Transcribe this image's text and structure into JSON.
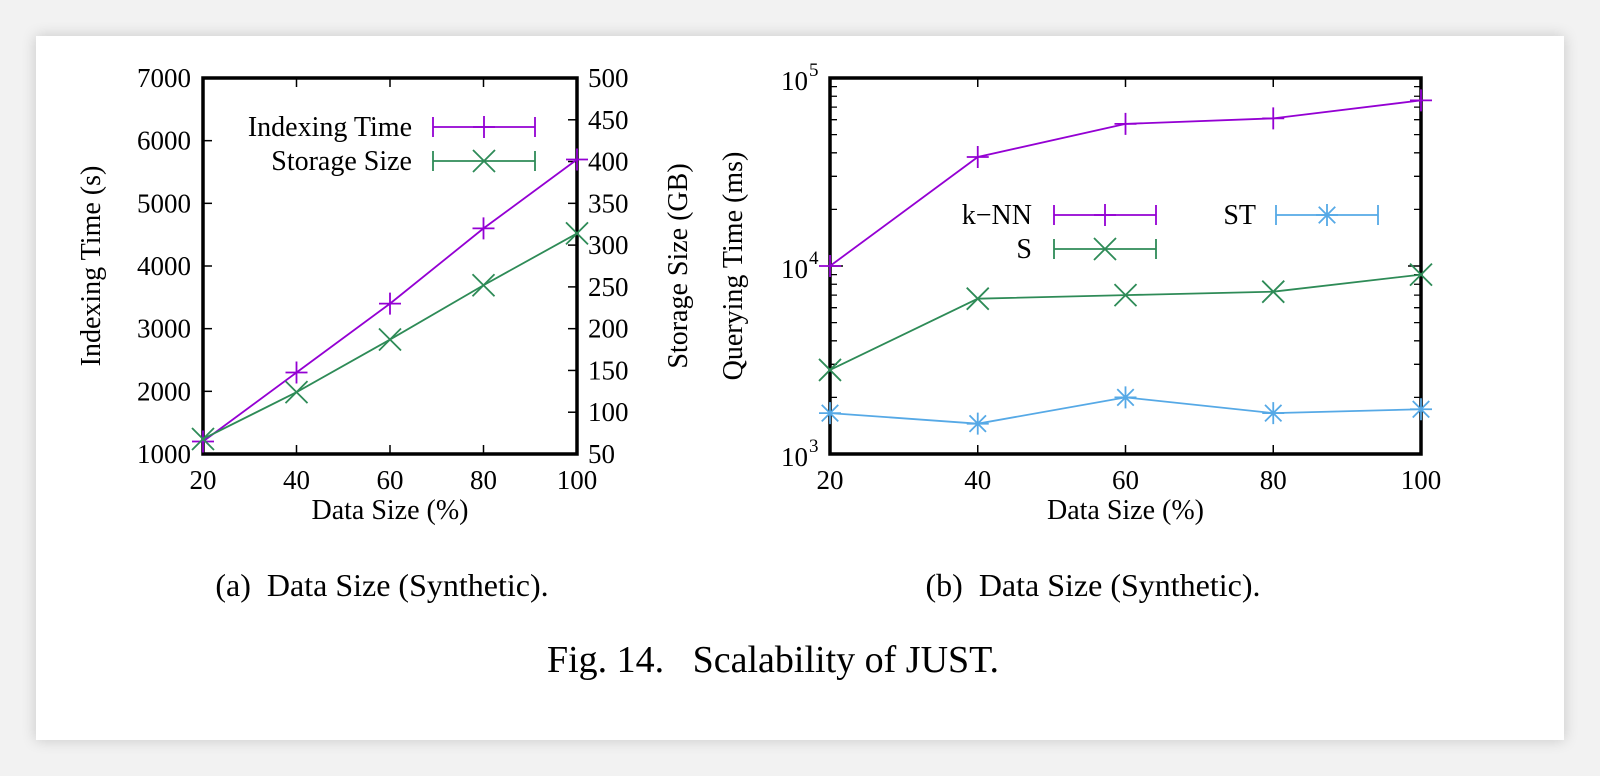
{
  "figure_caption": "Fig. 14.   Scalability of JUST.",
  "chart_data": [
    {
      "type": "line",
      "caption": "(a)  Data Size (Synthetic).",
      "xlabel": "Data Size (%)",
      "ylabel": "Indexing Time (s)",
      "y2label": "Storage Size (GB)",
      "x": [
        20,
        40,
        60,
        80,
        100
      ],
      "xticks": [
        "20",
        "40",
        "60",
        "80",
        "100"
      ],
      "ylim": [
        1000,
        7000
      ],
      "yticks": [
        "1000",
        "2000",
        "3000",
        "4000",
        "5000",
        "6000",
        "7000"
      ],
      "y2lim": [
        50,
        500
      ],
      "y2ticks": [
        "50",
        "100",
        "150",
        "200",
        "250",
        "300",
        "350",
        "400",
        "450",
        "500"
      ],
      "grid": false,
      "legend_position": "top-left",
      "series": [
        {
          "name": "Indexing Time",
          "axis": "left",
          "color": "#9400d3",
          "marker": "plus",
          "values": [
            1200,
            2300,
            3400,
            4600,
            5700
          ]
        },
        {
          "name": "Storage Size",
          "axis": "right",
          "color": "#2e8b57",
          "marker": "cross",
          "values": [
            68,
            124,
            187,
            252,
            314
          ]
        }
      ]
    },
    {
      "type": "line",
      "caption": "(b)  Data Size (Synthetic).",
      "xlabel": "Data Size (%)",
      "ylabel": "Querying Time (ms)",
      "x": [
        20,
        40,
        60,
        80,
        100
      ],
      "xticks": [
        "20",
        "40",
        "60",
        "80",
        "100"
      ],
      "yscale": "log",
      "ylim": [
        1000,
        100000
      ],
      "yticks": [
        {
          "base": "10",
          "exp": "3"
        },
        {
          "base": "10",
          "exp": "4"
        },
        {
          "base": "10",
          "exp": "5"
        }
      ],
      "grid": false,
      "legend_position": "center-left",
      "series": [
        {
          "name": "k−NN",
          "color": "#9400d3",
          "marker": "plus",
          "values": [
            10000,
            38000,
            57000,
            61000,
            76000
          ]
        },
        {
          "name": "S",
          "color": "#2e8b57",
          "marker": "cross",
          "values": [
            2800,
            6700,
            7000,
            7300,
            9000
          ]
        },
        {
          "name": "ST",
          "color": "#56a9e6",
          "marker": "star",
          "values": [
            1650,
            1450,
            2000,
            1650,
            1730
          ]
        }
      ]
    }
  ]
}
